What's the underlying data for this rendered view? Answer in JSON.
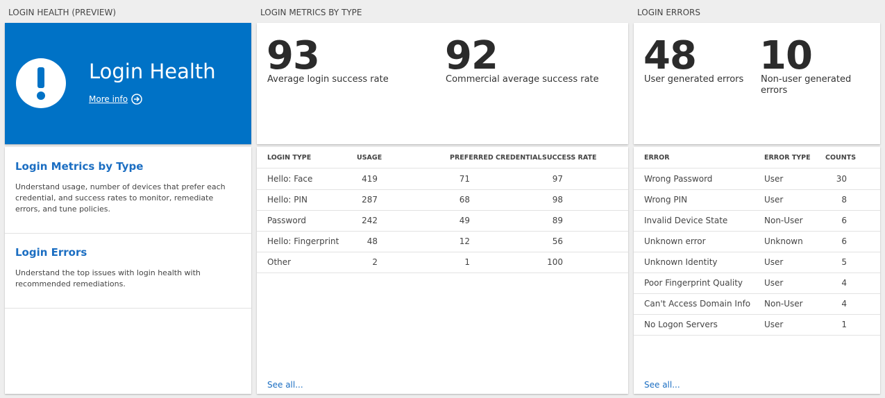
{
  "login_health": {
    "section": "LOGIN HEALTH (PREVIEW)",
    "hero": {
      "title": "Login Health",
      "link": "More info"
    },
    "items": [
      {
        "title": "Login Metrics by Type",
        "text": "Understand usage, number of devices that prefer each credential, and success rates to monitor, remediate errors, and tune policies."
      },
      {
        "title": "Login Errors",
        "text": "Understand the top issues with login health with recommended remediations."
      }
    ]
  },
  "login_metrics": {
    "section": "LOGIN METRICS BY TYPE",
    "kpis": [
      {
        "value": 93,
        "label": "Average login success rate"
      },
      {
        "value": 92,
        "label": "Commercial average success rate"
      }
    ],
    "table": {
      "columns": [
        "LOGIN TYPE",
        "USAGE",
        "PREFERRED CREDENTIAL",
        "SUCCESS RATE"
      ],
      "rows": [
        [
          "Hello: Face",
          419,
          71,
          97
        ],
        [
          "Hello: PIN",
          287,
          68,
          98
        ],
        [
          "Password",
          242,
          49,
          89
        ],
        [
          "Hello: Fingerprint",
          48,
          12,
          56
        ],
        [
          "Other",
          2,
          1,
          100
        ]
      ]
    },
    "link": "See all..."
  },
  "login_errors": {
    "section": "LOGIN ERRORS",
    "kpis": [
      {
        "value": 48,
        "label": "User generated errors"
      },
      {
        "value": 10,
        "label": "Non-user generated errors"
      }
    ],
    "table": {
      "columns": [
        "ERROR",
        "ERROR TYPE",
        "COUNTS"
      ],
      "rows": [
        [
          "Wrong Password",
          "User",
          30
        ],
        [
          "Wrong PIN",
          "User",
          8
        ],
        [
          "Invalid Device State",
          "Non-User",
          6
        ],
        [
          "Unknown error",
          "Unknown",
          6
        ],
        [
          "Unknown Identity",
          "User",
          5
        ],
        [
          "Poor Fingerprint Quality",
          "User",
          4
        ],
        [
          "Can't Access Domain Info",
          "Non-User",
          4
        ],
        [
          "No Logon Servers",
          "User",
          1
        ]
      ]
    },
    "link": "See all..."
  }
}
